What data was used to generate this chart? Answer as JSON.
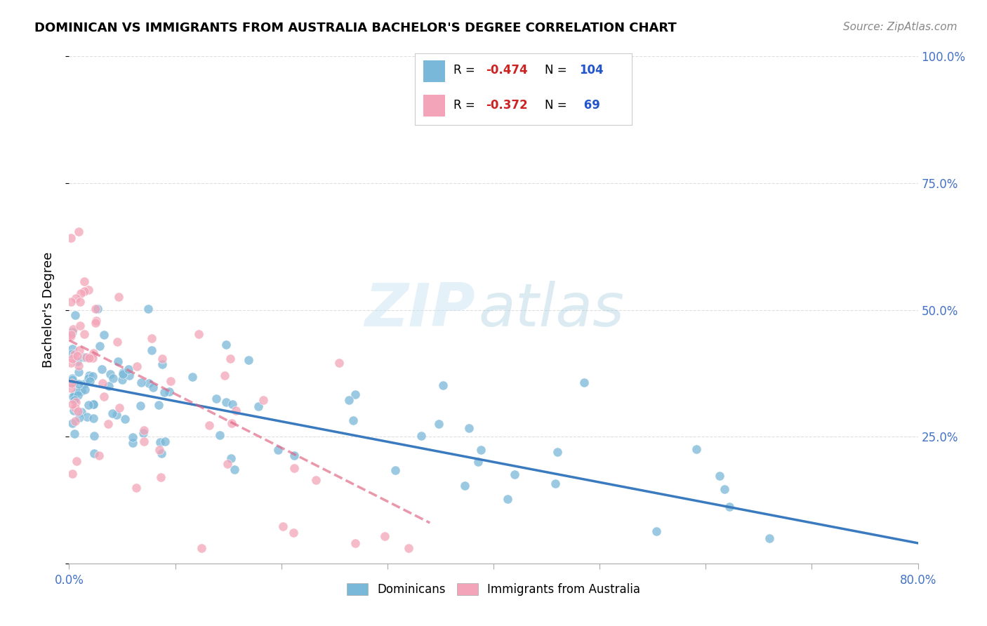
{
  "title": "DOMINICAN VS IMMIGRANTS FROM AUSTRALIA BACHELOR'S DEGREE CORRELATION CHART",
  "source": "Source: ZipAtlas.com",
  "ylabel": "Bachelor's Degree",
  "color_blue": "#7ab8d9",
  "color_pink": "#f4a4b8",
  "color_blue_line": "#3a7abf",
  "color_pink_line": "#e06080",
  "series1_label": "Dominicans",
  "series2_label": "Immigrants from Australia",
  "r1": -0.474,
  "n1": 104,
  "r2": -0.372,
  "n2": 69,
  "xlim": [
    0,
    80
  ],
  "ylim": [
    0,
    100
  ],
  "xticks": [
    0,
    10,
    20,
    30,
    40,
    50,
    60,
    70,
    80
  ],
  "xtick_labels": [
    "0.0%",
    "",
    "",
    "",
    "",
    "",
    "",
    "",
    "80.0%"
  ],
  "yticks_right": [
    25,
    50,
    75,
    100
  ],
  "ytick_right_labels": [
    "25.0%",
    "50.0%",
    "75.0%",
    "100.0%"
  ],
  "grid_color": "#d8d8d8",
  "title_fontsize": 13,
  "source_fontsize": 11,
  "tick_fontsize": 12,
  "blue_trend_x": [
    0,
    80
  ],
  "blue_trend_y": [
    36,
    4
  ],
  "pink_trend_x": [
    0,
    34
  ],
  "pink_trend_y": [
    44,
    8
  ]
}
